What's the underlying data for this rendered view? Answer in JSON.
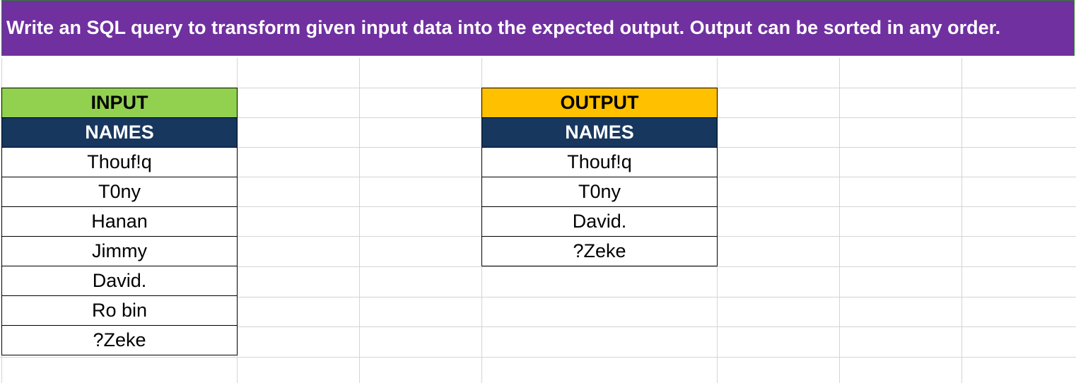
{
  "header": {
    "text": "Write an SQL query to transform given input data into the expected output. Output can be sorted in any order."
  },
  "input_table": {
    "title": "INPUT",
    "title_color": "#92d050",
    "column": "NAMES",
    "column_color": "#17375e",
    "rows": [
      "Thouf!q",
      "T0ny",
      "Hanan",
      "Jimmy",
      "David.",
      "Ro bin",
      "?Zeke"
    ]
  },
  "output_table": {
    "title": "OUTPUT",
    "title_color": "#ffc000",
    "column": "NAMES",
    "column_color": "#17375e",
    "rows": [
      "Thouf!q",
      "T0ny",
      "David.",
      "?Zeke"
    ]
  },
  "banner_color": "#7030a0"
}
